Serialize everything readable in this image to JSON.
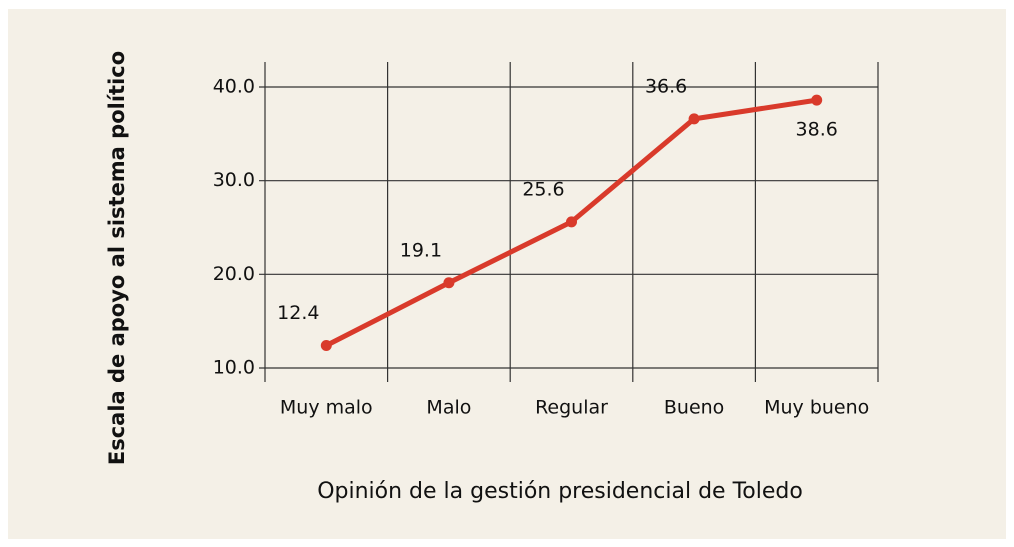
{
  "chart_data": {
    "type": "line",
    "x_label": "Opinión de la gestión presidencial de Toledo",
    "y_label": "Escala de apoyo al sistema político",
    "categories": [
      "Muy malo",
      "Malo",
      "Regular",
      "Bueno",
      "Muy bueno"
    ],
    "values": [
      12.4,
      19.1,
      25.6,
      36.6,
      38.6
    ],
    "color": "#d93a2b",
    "ylim": [
      10,
      40
    ],
    "yticks": [
      {
        "value": 10,
        "label": "10.0"
      },
      {
        "value": 20,
        "label": "20.0"
      },
      {
        "value": 30,
        "label": "30.0"
      },
      {
        "value": 40,
        "label": "40.0"
      }
    ],
    "grid": true
  }
}
